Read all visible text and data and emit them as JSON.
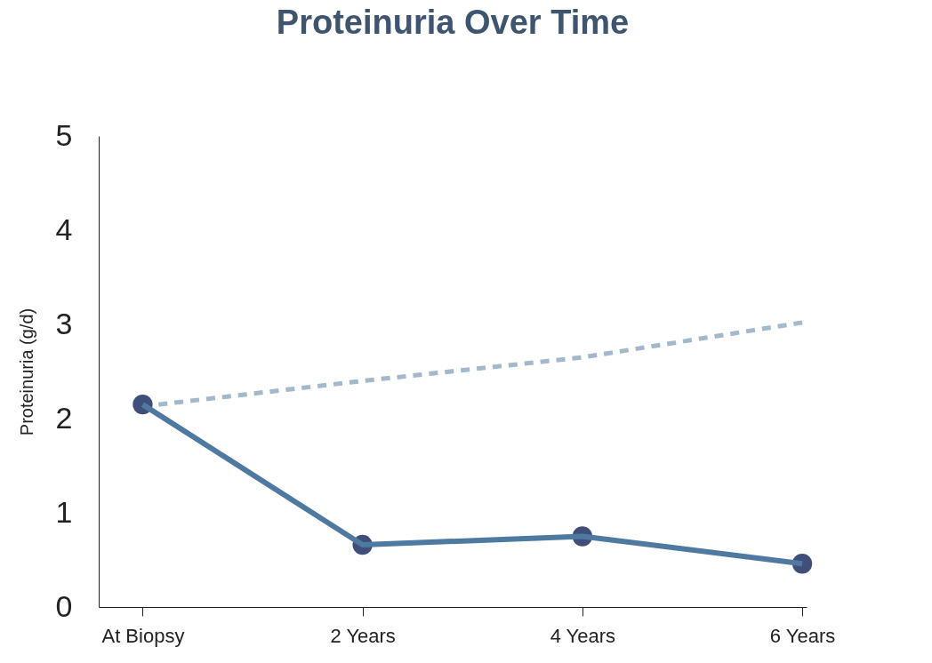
{
  "chart_data": {
    "type": "line",
    "title": "Proteinuria Over Time",
    "ylabel": "Proteinuria (g/d)",
    "categories": [
      "At Biopsy",
      "2 Years",
      "4 Years",
      "6 Years"
    ],
    "series": [
      {
        "color": "#4e79a0",
        "values": [
          2.15,
          0.66,
          0.75,
          0.46
        ],
        "marker": "circle",
        "line_style": "solid"
      },
      {
        "color": "#a3b8cc",
        "values": [
          2.13,
          2.4,
          2.65,
          3.02
        ],
        "marker": "none",
        "line_style": "dashed"
      }
    ],
    "ylim": [
      0,
      5
    ],
    "yticks": [
      0,
      1,
      2,
      3,
      4,
      5
    ],
    "grid": false,
    "legend": false
  }
}
